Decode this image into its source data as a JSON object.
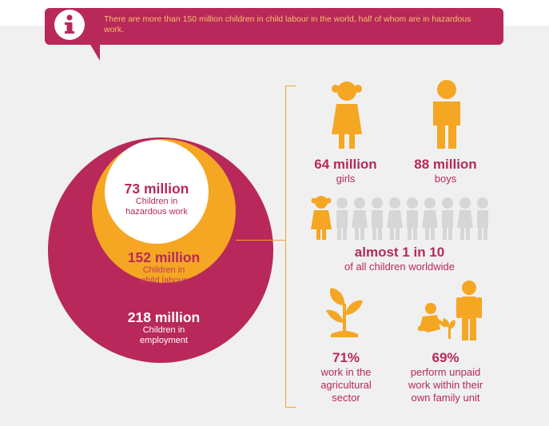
{
  "banner": {
    "text": "There are more than 150 million children in child labour in the world, half of whom are in hazardous work."
  },
  "circles": {
    "inner": {
      "value": "73 million",
      "label_line1": "Children in",
      "label_line2": "hazardous work"
    },
    "middle": {
      "value": "152 million",
      "label_line1": "Children in",
      "label_line2": "child labour"
    },
    "outer": {
      "value": "218 million",
      "label_line1": "Children in",
      "label_line2": "employment"
    }
  },
  "stats": {
    "girls": {
      "value": "64 million",
      "label": "girls"
    },
    "boys": {
      "value": "88 million",
      "label": "boys"
    },
    "ratio": {
      "value": "almost 1 in 10",
      "label": "of all children worldwide"
    },
    "agriculture": {
      "value": "71%",
      "label_line1": "work in the",
      "label_line2": "agricultural",
      "label_line3": "sector"
    },
    "family": {
      "value": "69%",
      "label_line1": "perform unpaid",
      "label_line2": "work within their",
      "label_line3": "own family unit"
    }
  },
  "colors": {
    "crimson": "#b8285a",
    "amber": "#f5a623",
    "grey_figure": "#d6d6d6",
    "background": "#f0f0f0"
  },
  "icons": [
    "info-icon",
    "girl-figure-icon",
    "boy-figure-icon",
    "children-row-icon",
    "plant-icon",
    "adult-child-planting-icon"
  ]
}
